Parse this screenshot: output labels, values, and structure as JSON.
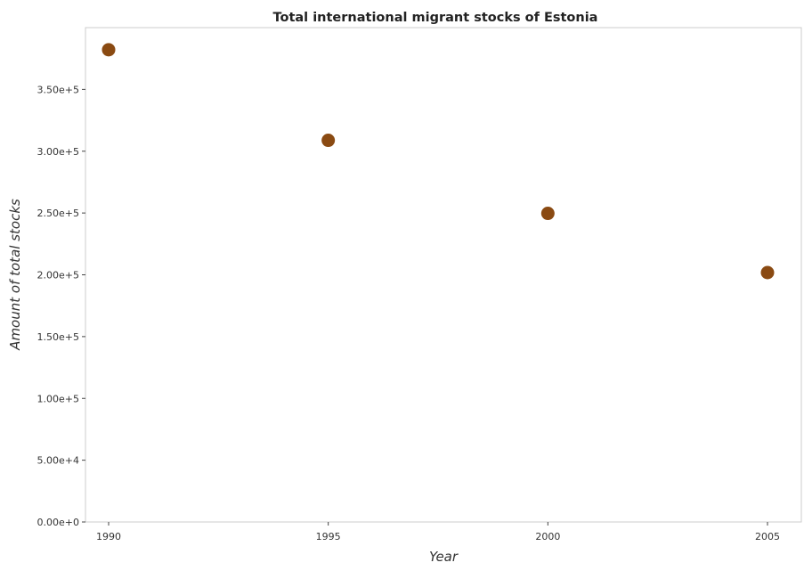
{
  "chart_data": {
    "type": "scatter",
    "title": "Total international migrant stocks of Estonia",
    "xlabel": "Year",
    "ylabel": "Amount of total stocks",
    "x": [
      "1990",
      "1995",
      "2000",
      "2005"
    ],
    "values": [
      382100,
      308800,
      249700,
      201800
    ],
    "yticks": [
      "0.00e+0",
      "5.00e+4",
      "1.00e+5",
      "1.50e+5",
      "2.00e+5",
      "2.50e+5",
      "3.00e+5",
      "3.50e+5"
    ],
    "ylim": [
      0,
      400000
    ],
    "grid": false,
    "color": "#8a4a12"
  }
}
